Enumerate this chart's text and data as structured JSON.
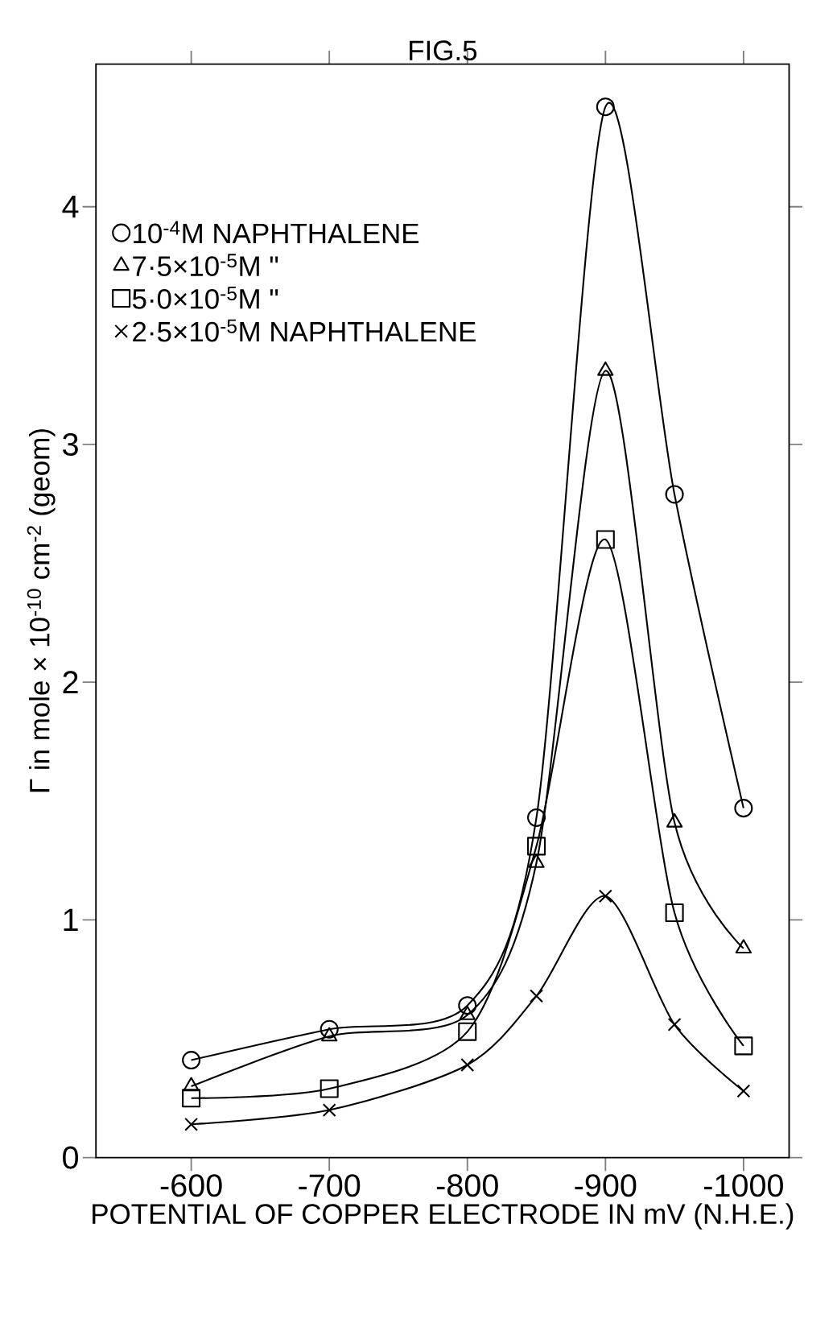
{
  "chart_data": {
    "type": "line",
    "title": "FIG.5",
    "xlabel": "POTENTIAL OF COPPER ELECTRODE IN mV (N.H.E.)",
    "ylabel": "Γ in mole × 10$^{-10}$ cm$^{-2}$ (geom)",
    "x": [
      -600,
      -700,
      -800,
      -850,
      -900,
      -950,
      -1000
    ],
    "xlim": [
      -531,
      -1033
    ],
    "xticks": [
      -600,
      -700,
      -800,
      -900,
      -1000
    ],
    "ylim": [
      0,
      4.6
    ],
    "yticks": [
      0,
      1,
      2,
      3,
      4
    ],
    "legend": "top left",
    "grid": false,
    "line_style": "solid",
    "series": [
      {
        "name": "10$^{-4}$M NAPHTHALENE",
        "color": "#000000",
        "marker": "circle",
        "values": [
          0.41,
          0.54,
          0.64,
          1.43,
          4.42,
          2.79,
          1.47
        ]
      },
      {
        "name": "7·5×10$^{-5}$M       \"",
        "color": "#000000",
        "marker": "triangle",
        "values": [
          0.3,
          0.51,
          0.6,
          1.24,
          3.31,
          1.41,
          0.88
        ]
      },
      {
        "name": "5·0×10$^{-5}$M       \"",
        "color": "#000000",
        "marker": "square",
        "values": [
          0.25,
          0.29,
          0.53,
          1.31,
          2.6,
          1.03,
          0.47
        ]
      },
      {
        "name": "2·5×10$^{-5}$M NAPHTHALENE",
        "color": "#000000",
        "marker": "cross",
        "values": [
          0.14,
          0.2,
          0.39,
          0.68,
          1.1,
          0.56,
          0.28
        ]
      }
    ]
  }
}
